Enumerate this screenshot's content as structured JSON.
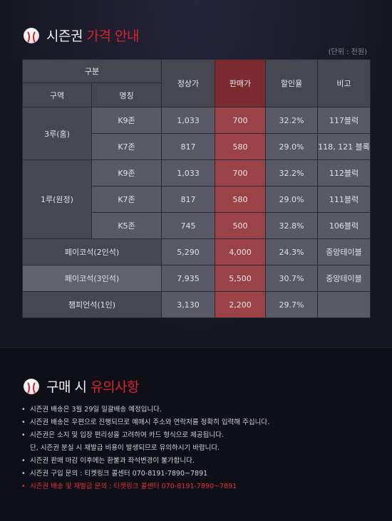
{
  "section1": {
    "title_main": "시즌권",
    "title_accent": "가격 안내",
    "ball_icon": "baseball-icon"
  },
  "unit": "(단위 : 천원)",
  "table": {
    "headers": {
      "category": "구분",
      "zone": "구역",
      "name": "명칭",
      "regular": "정상가",
      "sale": "판매가",
      "discount": "할인율",
      "note": "비고"
    },
    "groups": [
      {
        "zone": "3루(홈)",
        "rows": [
          {
            "name": "K9존",
            "regular": "1,033",
            "sale": "700",
            "discount": "32.2%",
            "note": "117블럭"
          },
          {
            "name": "K7존",
            "regular": "817",
            "sale": "580",
            "discount": "29.0%",
            "note": "118, 121 블록"
          }
        ]
      },
      {
        "zone": "1루(원정)",
        "rows": [
          {
            "name": "K9존",
            "regular": "1,033",
            "sale": "700",
            "discount": "32.2%",
            "note": "112블럭"
          },
          {
            "name": "K7존",
            "regular": "817",
            "sale": "580",
            "discount": "29.0%",
            "note": "111블럭"
          },
          {
            "name": "K5존",
            "regular": "745",
            "sale": "500",
            "discount": "32.8%",
            "note": "106블럭"
          }
        ]
      }
    ],
    "wide_rows": [
      {
        "name": "페이코석(2인석)",
        "regular": "5,290",
        "sale": "4,000",
        "discount": "24.3%",
        "note": "중앙테이블"
      },
      {
        "name": "페이코석(3인석)",
        "regular": "7,935",
        "sale": "5,500",
        "discount": "30.7%",
        "note": "중앙테이블"
      },
      {
        "name": "챔피언석(1인)",
        "regular": "3,130",
        "sale": "2,200",
        "discount": "29.7%",
        "note": ""
      }
    ]
  },
  "section2": {
    "title_main": "구매 시",
    "title_accent": "유의사항",
    "ball_icon": "baseball-icon"
  },
  "notes": [
    "시즌권 배송은 3월 29일 일괄배송 예정입니다.",
    "시즌권 배송은 우편으로 진행되므로 예매시 주소와 연락처를 정확히 입력해 주십니다.",
    "시즌권은 소지 및 입장 편리성을 고려하여 카드 형식으로 제공됩니다.",
    "단, 시즌권 분실 시 재발급 비용이 발생되므로 유의하시기 바랍니다.",
    "시즌권 판매 마감 이후에는 환불과 좌석변경이 불가합니다.",
    "시즌권 구입 문의 : 티켓링크 콜센터 070-8191-7890~7891",
    "시즌권 배송 및 재발급 문의 : 티켓링크 콜센터 070-8191-7890~7891"
  ]
}
